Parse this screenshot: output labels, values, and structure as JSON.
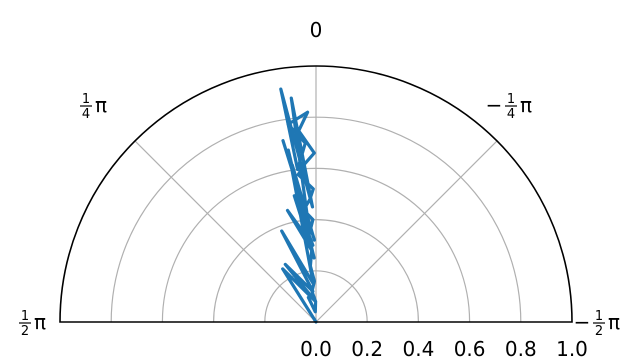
{
  "chart_data": {
    "type": "line",
    "projection": "polar",
    "title": "",
    "theta_zero_location": "top",
    "theta_direction": "clockwise",
    "theta_range_rad": [
      -1.5708,
      1.5708
    ],
    "r_range": [
      0.0,
      1.0
    ],
    "grid": true,
    "r_gridlines": [
      0.2,
      0.4,
      0.6,
      0.8,
      1.0
    ],
    "r_tick_labels": [
      "0.0",
      "0.2",
      "0.4",
      "0.6",
      "0.8",
      "1.0"
    ],
    "theta_gridlines_rad": [
      -1.5708,
      -0.7854,
      0.0,
      0.7854,
      1.5708
    ],
    "theta_tick_labels": [
      {
        "id": "left",
        "angle_rad": 1.5708,
        "sign": "",
        "num": "1",
        "den": "2",
        "sym": "π"
      },
      {
        "id": "upper-left",
        "angle_rad": 0.7854,
        "sign": "",
        "num": "1",
        "den": "4",
        "sym": "π"
      },
      {
        "id": "top",
        "angle_rad": 0.0,
        "text": "0"
      },
      {
        "id": "upper-right",
        "angle_rad": -0.7854,
        "sign": "−",
        "num": "1",
        "den": "4",
        "sym": "π"
      },
      {
        "id": "right",
        "angle_rad": -1.5708,
        "sign": "−",
        "num": "1",
        "den": "2",
        "sym": "π"
      }
    ],
    "series": [
      {
        "color": "#1f77b4",
        "theta": [
          0,
          0.56,
          0.02,
          0.49,
          0.1,
          0.36,
          0.07,
          0.16,
          0.03,
          0.17,
          0.04,
          0.25,
          0.06,
          0.14,
          0.02,
          0.15,
          0.05,
          0.18,
          0.08,
          0.11,
          0.03,
          0.15,
          0.12,
          0.06,
          0.14,
          0.04,
          0.09,
          0.01,
          0.07,
          0.12,
          0.02,
          0.05,
          0.11,
          0.03,
          0.08,
          0.06,
          0.1,
          0.04,
          0.13,
          0.02,
          0.07,
          0.3
        ],
        "r": [
          0,
          0.245,
          0.08,
          0.255,
          0.12,
          0.38,
          0.15,
          0.68,
          0.25,
          0.5,
          0.3,
          0.45,
          0.28,
          0.55,
          0.32,
          0.62,
          0.35,
          0.72,
          0.4,
          0.88,
          0.45,
          0.92,
          0.6,
          0.7,
          0.78,
          0.82,
          0.75,
          0.66,
          0.62,
          0.58,
          0.52,
          0.48,
          0.44,
          0.4,
          0.34,
          0.28,
          0.22,
          0.16,
          0.12,
          0.08,
          0.04,
          0.1
        ]
      }
    ]
  }
}
